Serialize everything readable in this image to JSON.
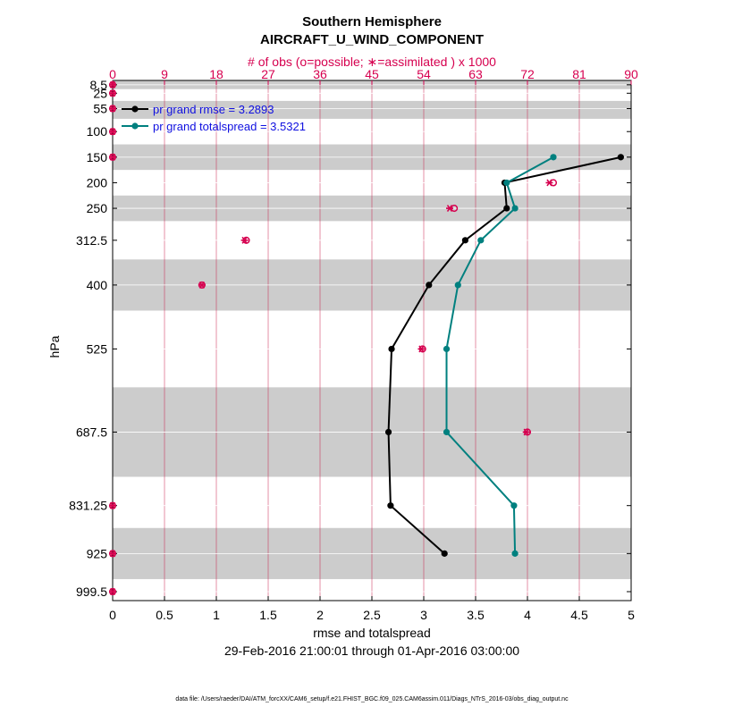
{
  "chart_data": {
    "type": "line",
    "title": "Southern Hemisphere",
    "subtitle": "AIRCRAFT_U_WIND_COMPONENT",
    "top_axis_label": "# of obs (o=possible; ∗=assimilated ) x 1000",
    "xlabel": "rmse and totalspread",
    "ylabel": "hPa",
    "date_range": "29-Feb-2016 21:00:01 through 01-Apr-2016 03:00:00",
    "footer": "data file: /Users/raeder/DAI/ATM_forcXX/CAM6_setup/f.e21.FHIST_BGC.f09_025.CAM6assim.011/Diags_NTrS_2016-03/obs_diag_output.nc",
    "xlim": [
      0,
      5
    ],
    "x_ticks": [
      "0",
      "0.5",
      "1",
      "1.5",
      "2",
      "2.5",
      "3",
      "3.5",
      "4",
      "4.5",
      "5"
    ],
    "top_xlim": [
      0,
      90
    ],
    "top_ticks": [
      "0",
      "9",
      "18",
      "27",
      "36",
      "45",
      "54",
      "63",
      "72",
      "81",
      "90"
    ],
    "levels": [
      8.5,
      25,
      55,
      100,
      150,
      200,
      250,
      312.5,
      400,
      525,
      687.5,
      831.25,
      925,
      999.5
    ],
    "y_ticks": [
      "8.5",
      "25",
      "55",
      "100",
      "150",
      "200",
      "250",
      "312.5",
      "400",
      "525",
      "687.5",
      "831.25",
      "925",
      "999.5"
    ],
    "grey_bands_hpa": [
      [
        0,
        17
      ],
      [
        40,
        75
      ],
      [
        125,
        175
      ],
      [
        225,
        275
      ],
      [
        350,
        450
      ],
      [
        600,
        775
      ],
      [
        875,
        975
      ]
    ],
    "series": [
      {
        "name": "pr grand rmse = 3.2893",
        "color": "#000000",
        "levels": [
          150,
          200,
          250,
          312.5,
          400,
          525,
          687.5,
          831.25,
          925
        ],
        "values": [
          4.9,
          3.78,
          3.8,
          3.4,
          3.05,
          2.69,
          2.66,
          2.68,
          3.2
        ]
      },
      {
        "name": "pr grand totalspread = 3.5321",
        "color": "#00807f",
        "levels": [
          150,
          200,
          250,
          312.5,
          400,
          525,
          687.5,
          831.25,
          925
        ],
        "values": [
          4.25,
          3.8,
          3.88,
          3.55,
          3.33,
          3.22,
          3.22,
          3.87,
          3.88
        ]
      }
    ],
    "obs_counts": {
      "color": "#d6004f",
      "levels": [
        8.5,
        25,
        55,
        100,
        150,
        200,
        250,
        312.5,
        400,
        525,
        687.5,
        831.25,
        925,
        999.5
      ],
      "possible": [
        0,
        0,
        0,
        0,
        0,
        76.5,
        59.3,
        23.2,
        15.5,
        53.8,
        72,
        0,
        0,
        0
      ],
      "assimilated": [
        0,
        0,
        0,
        0,
        0,
        75.8,
        58.5,
        22.9,
        15.5,
        53.6,
        71.8,
        0,
        0,
        0
      ]
    }
  }
}
